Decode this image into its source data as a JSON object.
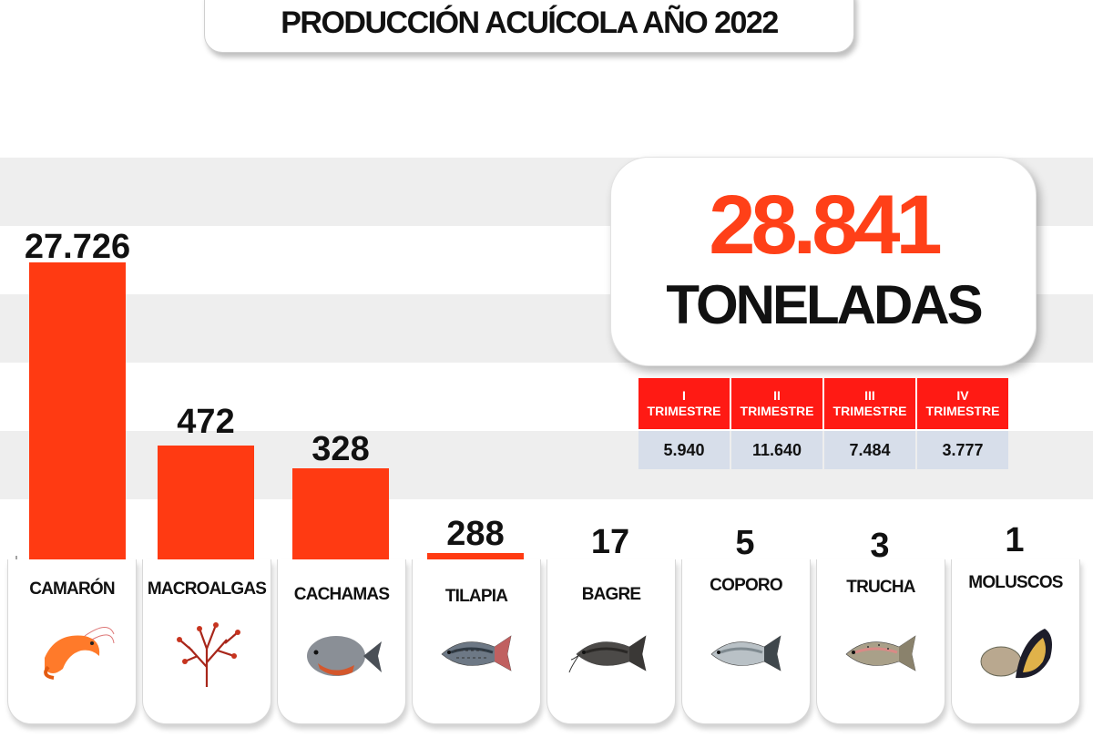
{
  "title": "PRODUCCIÓN ACUÍCOLA AÑO 2022",
  "total": {
    "value": "28.841",
    "unit": "TONELADAS"
  },
  "quarters": [
    {
      "numeral": "I",
      "label": "TRIMESTRE",
      "value": "5.940"
    },
    {
      "numeral": "II",
      "label": "TRIMESTRE",
      "value": "11.640"
    },
    {
      "numeral": "III",
      "label": "TRIMESTRE",
      "value": "7.484"
    },
    {
      "numeral": "IV",
      "label": "TRIMESTRE",
      "value": "3.777"
    }
  ],
  "colors": {
    "bar": "#ff3a12",
    "accent": "#ff4018",
    "header": "#ff1a14",
    "cell": "#d7deea"
  },
  "species_icons": [
    "shrimp-image",
    "seaweed-image",
    "cachama-fish-image",
    "tilapia-fish-image",
    "catfish-image",
    "coporo-fish-image",
    "trout-image",
    "mussels-image"
  ],
  "chart_data": {
    "type": "bar",
    "title": "PRODUCCIÓN ACUÍCOLA AÑO 2022",
    "categories": [
      "CAMARÓN",
      "MACROALGAS",
      "CACHAMAS",
      "TILAPIA",
      "BAGRE",
      "COPORO",
      "TRUCHA",
      "MOLUSCOS"
    ],
    "values": [
      27726,
      472,
      328,
      288,
      17,
      5,
      3,
      1
    ],
    "value_labels": [
      "27.726",
      "472",
      "328",
      "288",
      "17",
      "5",
      "3",
      "1"
    ],
    "xlabel": "",
    "ylabel": "",
    "scale": "non-proportional (pictorial)",
    "grid": true
  }
}
